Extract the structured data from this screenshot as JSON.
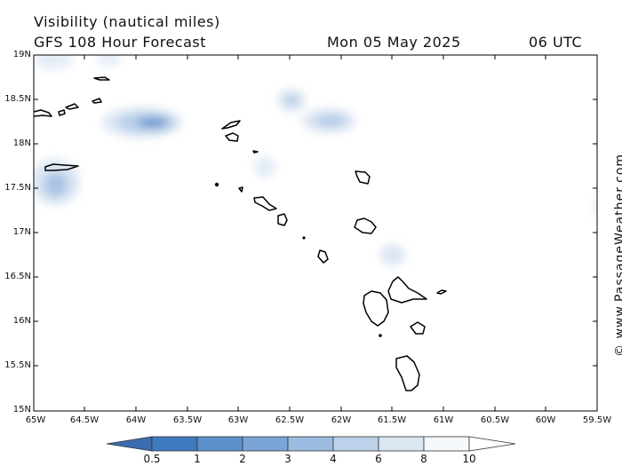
{
  "header": {
    "title": "Visibility (nautical miles)",
    "subtitle": "GFS 108 Hour Forecast",
    "date": "Mon 05 May 2025",
    "time": "06 UTC"
  },
  "map": {
    "lat_labels": [
      "19N",
      "18.5N",
      "18N",
      "17.5N",
      "17N",
      "16.5N",
      "16N",
      "15.5N",
      "15N"
    ],
    "lon_labels": [
      "65W",
      "64.5W",
      "64W",
      "63.5W",
      "63W",
      "62.5W",
      "62W",
      "61.5W",
      "61W",
      "60.5W",
      "60W",
      "59.5W"
    ]
  },
  "colorbar": {
    "labels": [
      "0.5",
      "1",
      "2",
      "3",
      "4",
      "6",
      "8",
      "10"
    ],
    "colors": [
      "#3f7abf",
      "#5d8fca",
      "#7ba5d6",
      "#9bbce0",
      "#bcd2ea",
      "#dbe6f3",
      "#f5f8fc"
    ]
  },
  "credit": "© www.PassageWeather.com"
}
